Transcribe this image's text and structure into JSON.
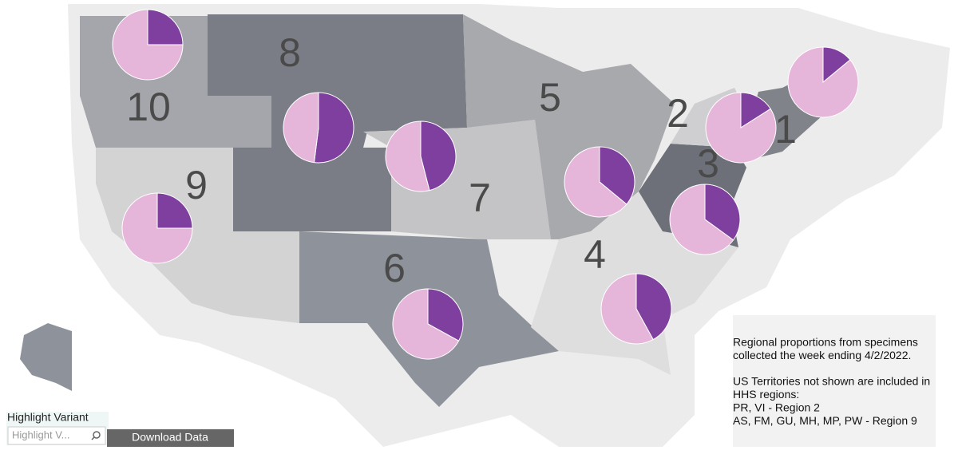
{
  "chart_data": {
    "type": "pie",
    "colors": [
      "#7e3f9e",
      "#e6b6da"
    ],
    "regions": [
      {
        "label": "10",
        "values": [
          25,
          75
        ]
      },
      {
        "label": "8",
        "values": [
          52,
          48
        ]
      },
      {
        "label": "9",
        "values": [
          25,
          75
        ]
      },
      {
        "label": "7",
        "values": [
          46,
          54
        ]
      },
      {
        "label": "6",
        "values": [
          33,
          67
        ]
      },
      {
        "label": "5",
        "values": [
          36,
          64
        ]
      },
      {
        "label": "4",
        "values": [
          42,
          58
        ]
      },
      {
        "label": "3",
        "values": [
          35,
          65
        ]
      },
      {
        "label": "2",
        "values": [
          16,
          84
        ]
      },
      {
        "label": "1",
        "values": [
          14,
          86
        ]
      }
    ]
  },
  "note": [
    "Regional proportions from specimens",
    "collected the week ending 4/2/2022.",
    "US Territories not shown are included in",
    "HHS regions:",
    "PR, VI - Region 2",
    "AS, FM, GU, MH, MP, PW - Region 9"
  ],
  "controls": {
    "highlight_label": "Highlight Variant",
    "highlight_placeholder": "Highlight V...",
    "download_button": "Download Data"
  }
}
